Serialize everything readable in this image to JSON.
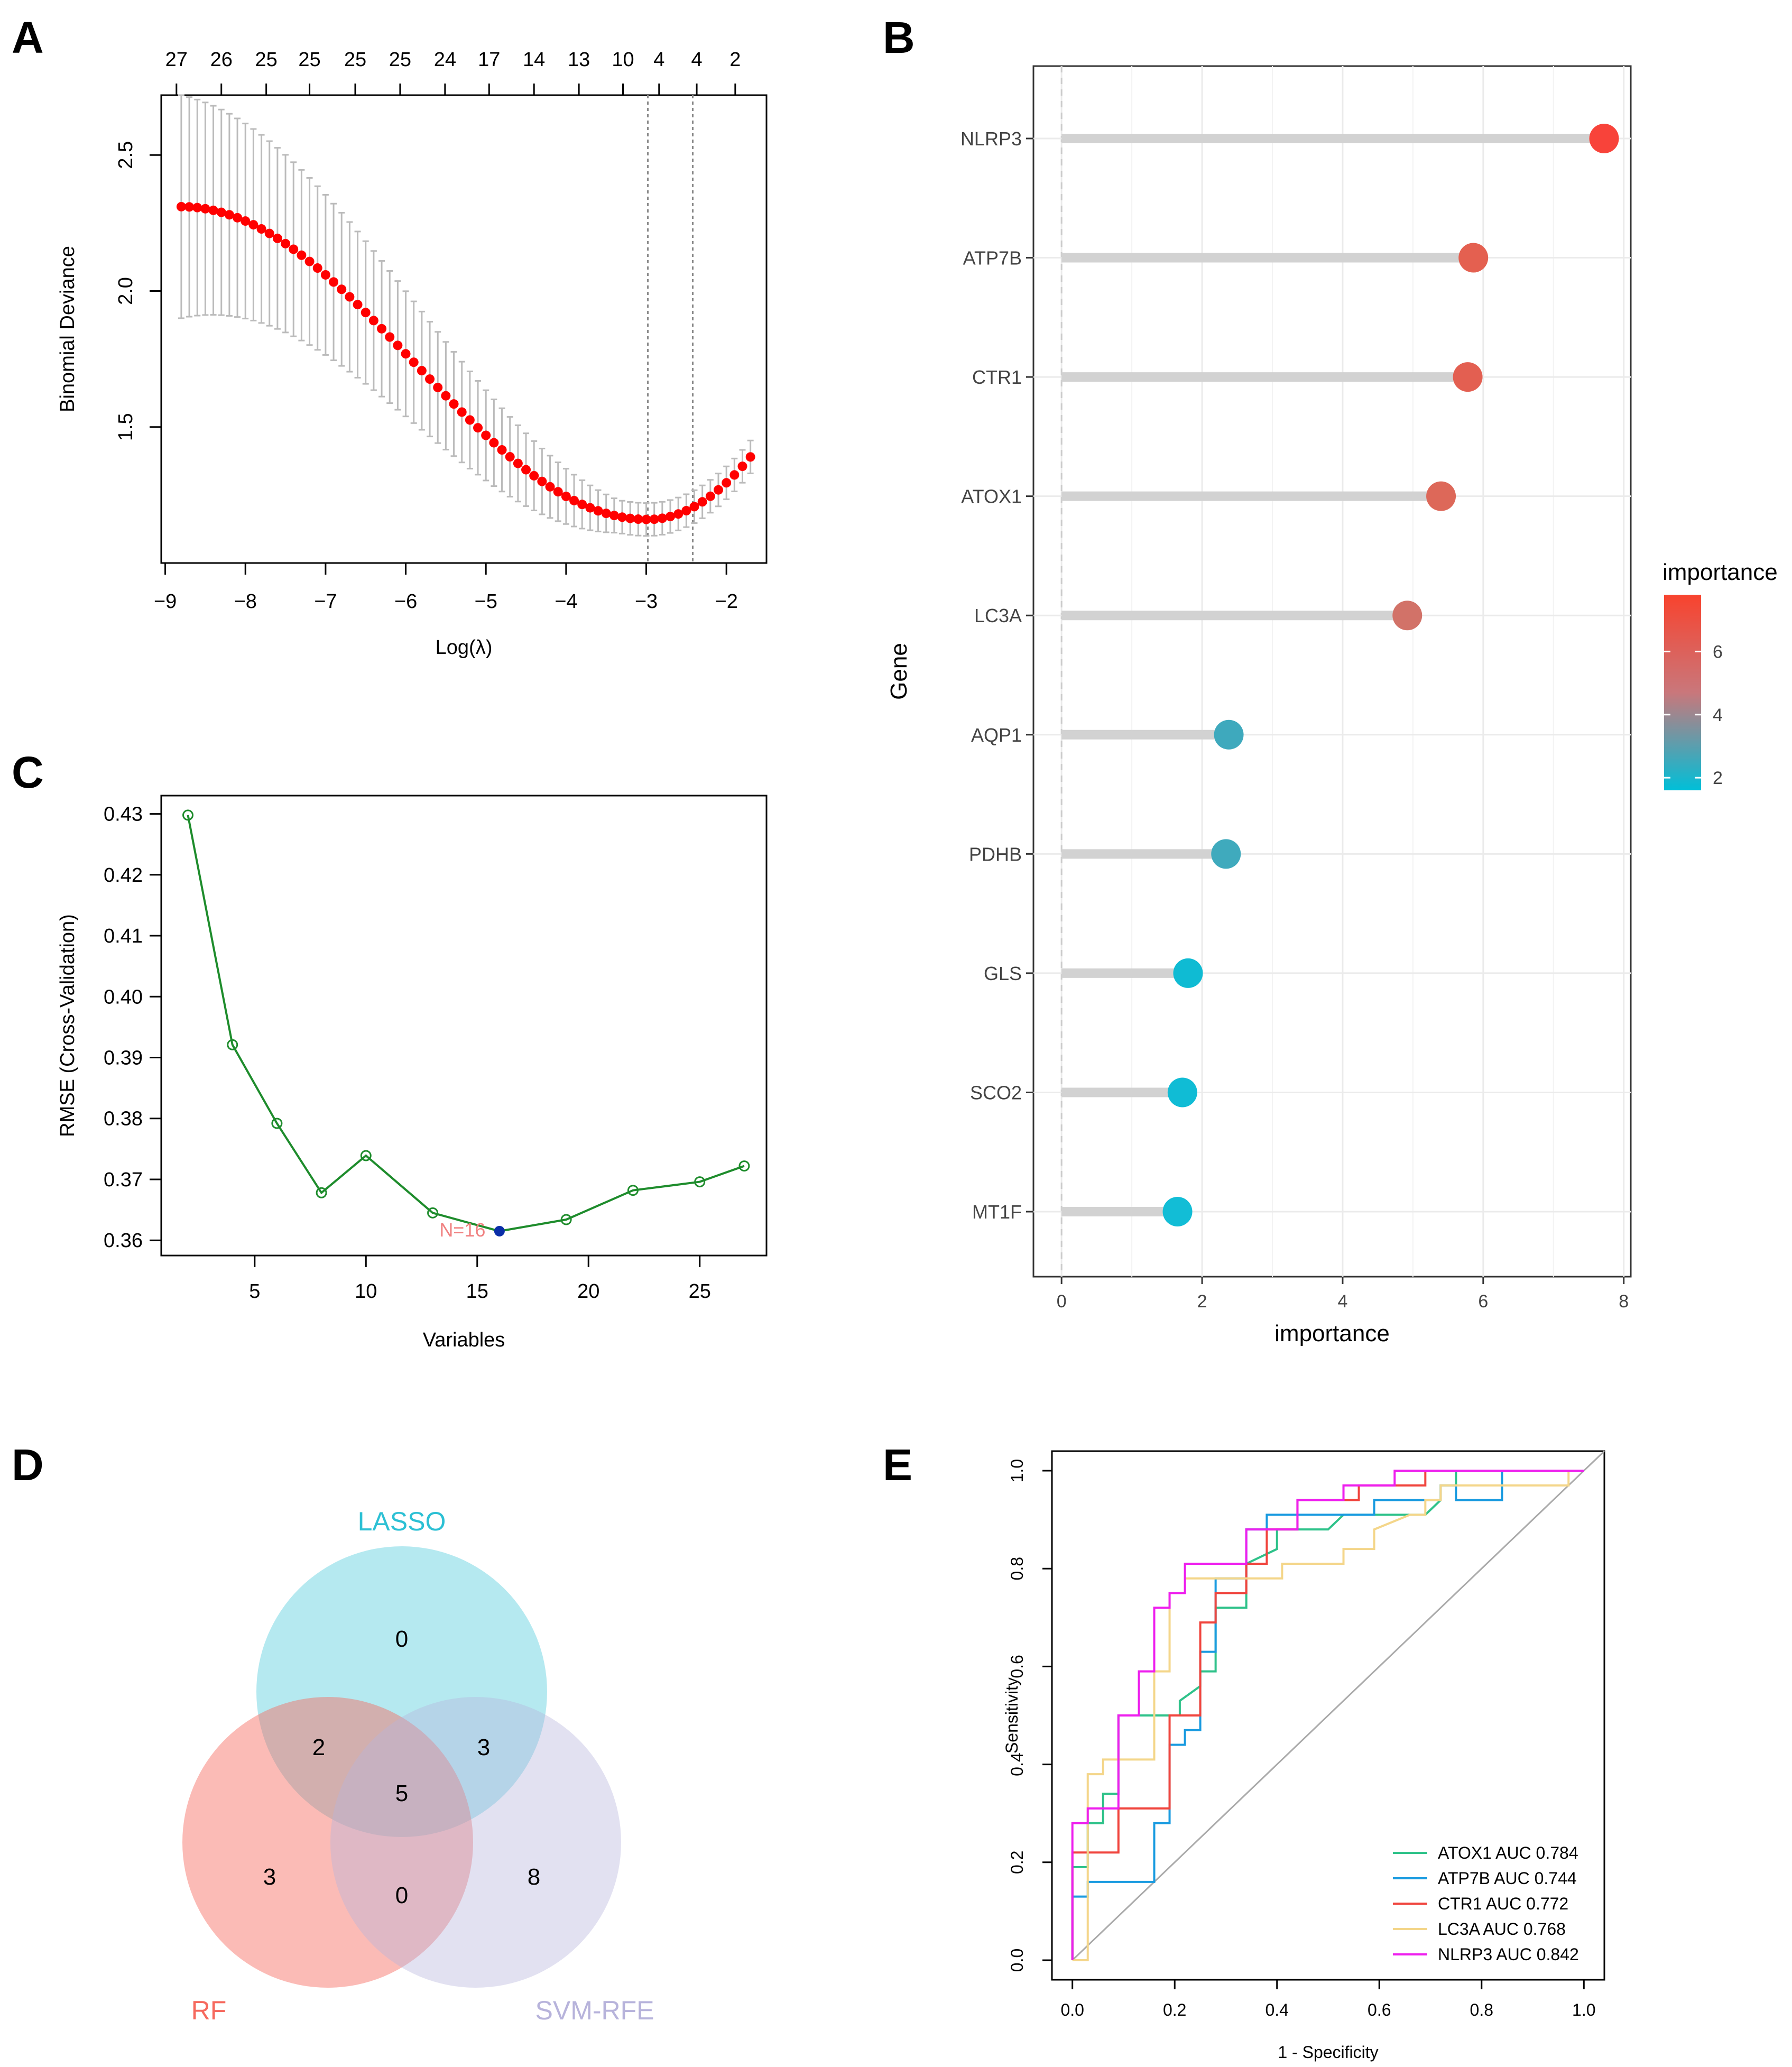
{
  "panels": {
    "A": {
      "letter": "A",
      "chart_data": {
        "type": "line",
        "title": "",
        "xlabel": "Log(λ)",
        "ylabel": "Binomial Deviance",
        "xlim": [
          -9.05,
          -1.5
        ],
        "ylim": [
          1.0,
          2.72
        ],
        "x_ticks": [
          -9,
          -8,
          -7,
          -6,
          -5,
          -4,
          -3,
          -2
        ],
        "y_ticks": [
          1.5,
          2.0,
          2.5
        ],
        "top_ticks": [
          {
            "x": -8.86,
            "label": "27"
          },
          {
            "x": -8.3,
            "label": "26"
          },
          {
            "x": -7.74,
            "label": "25"
          },
          {
            "x": -7.2,
            "label": "25"
          },
          {
            "x": -6.63,
            "label": "25"
          },
          {
            "x": -6.07,
            "label": "25"
          },
          {
            "x": -5.51,
            "label": "24"
          },
          {
            "x": -4.96,
            "label": "17"
          },
          {
            "x": -4.4,
            "label": "14"
          },
          {
            "x": -3.84,
            "label": "13"
          },
          {
            "x": -3.29,
            "label": "10"
          },
          {
            "x": -2.84,
            "label": "4"
          },
          {
            "x": -2.37,
            "label": "4"
          },
          {
            "x": -1.89,
            "label": "2"
          }
        ],
        "vlines": [
          -2.98,
          -2.42
        ],
        "series": [
          {
            "name": "deviance",
            "x_start": -8.8,
            "x_end": -1.7,
            "points": 72,
            "y_start": 2.31,
            "y_end": 1.39,
            "y_min": 1.16,
            "x_min": -2.98,
            "se": 0.38
          }
        ]
      }
    },
    "B": {
      "letter": "B",
      "chart_data": {
        "type": "scatter",
        "title": "",
        "xlabel": "importance",
        "ylabel": "Gene",
        "xlim": [
          -0.4,
          8.1
        ],
        "x_ticks": [
          0,
          2,
          4,
          6,
          8
        ],
        "genes": [
          "NLRP3",
          "ATP7B",
          "CTR1",
          "ATOX1",
          "LC3A",
          "AQP1",
          "PDHB",
          "GLS",
          "SCO2",
          "MT1F"
        ],
        "values": [
          7.72,
          5.86,
          5.78,
          5.4,
          4.92,
          2.38,
          2.34,
          1.8,
          1.72,
          1.65
        ],
        "colors": [
          "#f8433a",
          "#e46050",
          "#e35f51",
          "#dd6859",
          "#d27268",
          "#3ea9bd",
          "#3faabd",
          "#0fbbd3",
          "#10bcd5",
          "#12bdd6"
        ],
        "legend": {
          "title": "importance",
          "ticks": [
            "2",
            "4",
            "6"
          ],
          "tick_values": [
            2,
            4,
            6
          ],
          "range": [
            1.6,
            7.8
          ],
          "low_color": "#00bfd8",
          "high_color": "#f8432e",
          "mid_color": "#c9777b",
          "position": "right"
        }
      }
    },
    "C": {
      "letter": "C",
      "chart_data": {
        "type": "line",
        "title": "",
        "xlabel": "Variables",
        "ylabel": "RMSE (Cross-Validation)",
        "xlim": [
          0.8,
          28.0
        ],
        "ylim": [
          0.3575,
          0.433
        ],
        "x_ticks": [
          5,
          10,
          15,
          20,
          25
        ],
        "y_ticks": [
          0.36,
          0.37,
          0.38,
          0.39,
          0.4,
          0.41,
          0.42,
          0.43
        ],
        "y_tick_labels": [
          "0.36",
          "0.37",
          "0.38",
          "0.39",
          "0.40",
          "0.41",
          "0.42",
          "0.43"
        ],
        "x": [
          2,
          4,
          6,
          8,
          10,
          13,
          16,
          19,
          22,
          25,
          27
        ],
        "y": [
          0.4298,
          0.3921,
          0.3792,
          0.3678,
          0.3739,
          0.3645,
          0.3615,
          0.3634,
          0.3682,
          0.3696,
          0.3722
        ],
        "best": {
          "x": 16,
          "y": 0.3615,
          "label": "N=16"
        },
        "line_color": "#1e8c2c",
        "best_color": "#0a2ea8",
        "best_label_color": "#f08080"
      }
    },
    "D": {
      "letter": "D",
      "venn": {
        "sets": [
          {
            "name": "LASSO",
            "color": "#2cc0d4"
          },
          {
            "name": "RF",
            "color": "#f6695e"
          },
          {
            "name": "SVM-RFE",
            "color": "#b7b3db"
          }
        ],
        "regions": {
          "lasso_only": "0",
          "lasso_rf": "2",
          "lasso_svm": "3",
          "all": "5",
          "rf_only": "3",
          "rf_svm": "0",
          "svm_only": "8"
        }
      }
    },
    "E": {
      "letter": "E",
      "chart_data": {
        "type": "line",
        "title": "",
        "xlabel": "1 - Specificity",
        "ylabel": "Sensitivity",
        "xlim": [
          -0.04,
          1.04
        ],
        "ylim": [
          -0.04,
          1.04
        ],
        "x_ticks": [
          0.0,
          0.2,
          0.4,
          0.6,
          0.8,
          1.0
        ],
        "y_ticks": [
          0.0,
          0.2,
          0.4,
          0.6,
          0.8,
          1.0
        ],
        "tick_labels": [
          "0.0",
          "0.2",
          "0.4",
          "0.6",
          "0.8",
          "1.0"
        ],
        "series": [
          {
            "name": "ATOX1",
            "label": "ATOX1 AUC 0.784",
            "auc": 0.784,
            "color": "#2fc28a",
            "x": [
              0.0,
              0.0,
              0.03,
              0.03,
              0.06,
              0.06,
              0.09,
              0.09,
              0.18,
              0.18,
              0.21,
              0.21,
              0.25,
              0.25,
              0.28,
              0.28,
              0.34,
              0.34,
              0.4,
              0.4,
              0.5,
              0.53,
              0.69,
              0.72,
              0.72,
              0.75,
              0.75,
              0.81,
              1.0
            ],
            "y": [
              0.0,
              0.19,
              0.19,
              0.28,
              0.28,
              0.34,
              0.34,
              0.5,
              0.5,
              0.5,
              0.5,
              0.53,
              0.56,
              0.59,
              0.59,
              0.72,
              0.72,
              0.81,
              0.84,
              0.88,
              0.88,
              0.91,
              0.91,
              0.94,
              0.97,
              0.97,
              1.0,
              1.0,
              1.0
            ]
          },
          {
            "name": "ATP7B",
            "label": "ATP7B AUC 0.744",
            "auc": 0.744,
            "color": "#1a9be0",
            "x": [
              0.0,
              0.0,
              0.03,
              0.03,
              0.16,
              0.16,
              0.19,
              0.19,
              0.22,
              0.22,
              0.25,
              0.25,
              0.28,
              0.28,
              0.34,
              0.34,
              0.38,
              0.38,
              0.59,
              0.59,
              0.72,
              0.72,
              0.75,
              0.75,
              0.84,
              0.84,
              0.97,
              0.97,
              1.0
            ],
            "y": [
              0.0,
              0.13,
              0.13,
              0.16,
              0.16,
              0.28,
              0.28,
              0.44,
              0.44,
              0.47,
              0.47,
              0.63,
              0.63,
              0.78,
              0.78,
              0.88,
              0.88,
              0.91,
              0.91,
              0.94,
              0.94,
              0.97,
              0.97,
              0.94,
              0.94,
              1.0,
              1.0,
              1.0,
              1.0
            ]
          },
          {
            "name": "CTR1",
            "label": "CTR1 AUC 0.772",
            "auc": 0.772,
            "color": "#f0453e",
            "x": [
              0.0,
              0.0,
              0.09,
              0.09,
              0.19,
              0.19,
              0.25,
              0.25,
              0.28,
              0.28,
              0.34,
              0.34,
              0.38,
              0.38,
              0.44,
              0.44,
              0.56,
              0.56,
              0.69,
              0.69,
              1.0
            ],
            "y": [
              0.0,
              0.22,
              0.22,
              0.31,
              0.31,
              0.5,
              0.5,
              0.69,
              0.69,
              0.75,
              0.75,
              0.81,
              0.81,
              0.88,
              0.88,
              0.94,
              0.94,
              0.97,
              0.97,
              1.0,
              1.0
            ]
          },
          {
            "name": "LC3A",
            "label": "LC3A AUC 0.768",
            "auc": 0.768,
            "color": "#f4d68a",
            "x": [
              0.0,
              0.03,
              0.03,
              0.06,
              0.06,
              0.09,
              0.09,
              0.16,
              0.16,
              0.19,
              0.19,
              0.22,
              0.22,
              0.41,
              0.41,
              0.53,
              0.53,
              0.59,
              0.59,
              0.66,
              0.69,
              0.69,
              0.72,
              0.72,
              0.75,
              0.75,
              0.78,
              0.97,
              0.97,
              1.0
            ],
            "y": [
              0.0,
              0.0,
              0.38,
              0.38,
              0.41,
              0.41,
              0.41,
              0.41,
              0.59,
              0.59,
              0.75,
              0.75,
              0.78,
              0.78,
              0.81,
              0.81,
              0.84,
              0.84,
              0.88,
              0.91,
              0.91,
              0.94,
              0.94,
              0.97,
              0.97,
              0.97,
              0.97,
              0.97,
              1.0,
              1.0
            ]
          },
          {
            "name": "NLRP3",
            "label": "NLRP3 AUC 0.842",
            "auc": 0.842,
            "color": "#ee1fee",
            "x": [
              0.0,
              0.0,
              0.03,
              0.03,
              0.09,
              0.09,
              0.13,
              0.13,
              0.16,
              0.16,
              0.19,
              0.19,
              0.22,
              0.22,
              0.34,
              0.34,
              0.44,
              0.44,
              0.53,
              0.53,
              0.63,
              0.63,
              1.0
            ],
            "y": [
              0.0,
              0.28,
              0.28,
              0.31,
              0.31,
              0.5,
              0.5,
              0.59,
              0.59,
              0.72,
              0.72,
              0.75,
              0.75,
              0.81,
              0.81,
              0.88,
              0.88,
              0.94,
              0.94,
              0.97,
              0.97,
              1.0,
              1.0
            ]
          }
        ]
      }
    }
  }
}
